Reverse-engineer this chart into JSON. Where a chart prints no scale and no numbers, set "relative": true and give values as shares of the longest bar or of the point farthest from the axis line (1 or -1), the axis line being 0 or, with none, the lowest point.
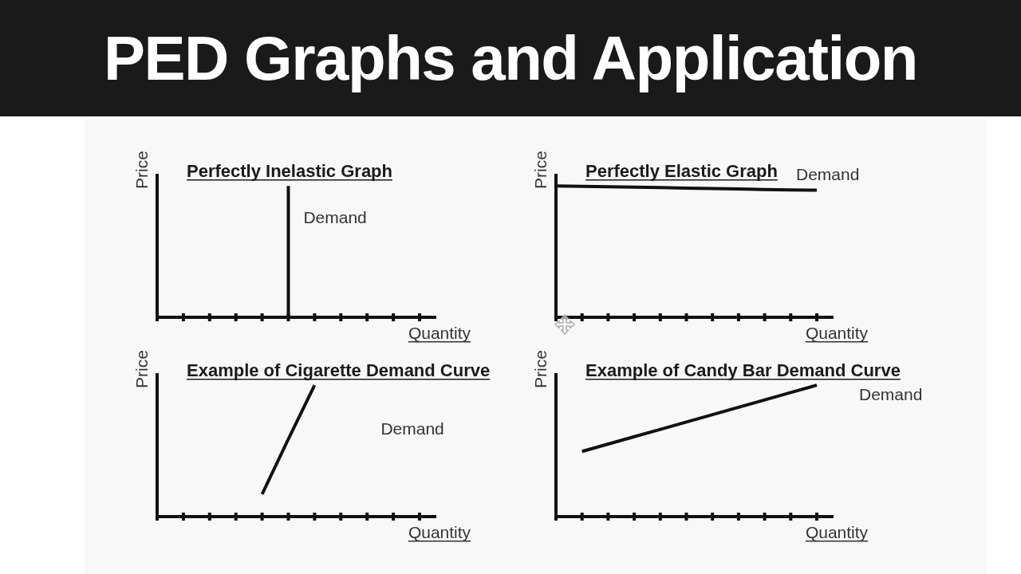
{
  "chart_data": [
    {
      "type": "other",
      "title": "PED Graphs and Application"
    },
    {
      "type": "step",
      "relative": true,
      "title": "Perfectly Inelastic Graph",
      "xlabel": "Quantity",
      "ylabel": "Price",
      "categories": [
        null,
        null,
        null,
        null,
        null,
        null,
        null,
        null,
        null,
        null,
        null
      ],
      "series": [
        {
          "name": "Demand",
          "color": "#111111",
          "values": [
            null,
            null,
            null,
            null,
            null,
            1,
            0,
            null,
            null,
            null,
            null
          ]
        }
      ]
    },
    {
      "type": "line",
      "relative": true,
      "title": "Perfectly Elastic Graph",
      "xlabel": "Quantity",
      "ylabel": "Price",
      "categories": [
        null,
        null,
        null,
        null,
        null,
        null,
        null,
        null,
        null,
        null,
        null
      ],
      "series": [
        {
          "name": "Demand",
          "color": "#111111",
          "values": [
            1,
            0.997,
            0.993,
            0.99,
            0.987,
            0.983,
            0.98,
            0.977,
            0.973,
            0.97,
            0.967
          ]
        }
      ]
    },
    {
      "type": "line",
      "relative": true,
      "title": "Example of Cigarette Demand Curve",
      "xlabel": "Quantity",
      "ylabel": "Price",
      "categories": [
        null,
        null,
        null,
        null,
        null,
        null,
        null,
        null,
        null,
        null,
        null
      ],
      "series": [
        {
          "name": "Demand",
          "color": "#111111",
          "values": [
            null,
            null,
            null,
            null,
            0.17,
            0.59,
            1,
            null,
            null,
            null,
            null
          ]
        }
      ]
    },
    {
      "type": "line",
      "relative": true,
      "title": "Example of Candy Bar Demand Curve",
      "xlabel": "Quantity",
      "ylabel": "Price",
      "categories": [
        null,
        null,
        null,
        null,
        null,
        null,
        null,
        null,
        null,
        null,
        null
      ],
      "series": [
        {
          "name": "Demand",
          "color": "#111111",
          "values": [
            null,
            0.496,
            0.552,
            0.608,
            0.664,
            0.72,
            0.776,
            0.832,
            0.888,
            0.944,
            1
          ]
        }
      ]
    }
  ]
}
